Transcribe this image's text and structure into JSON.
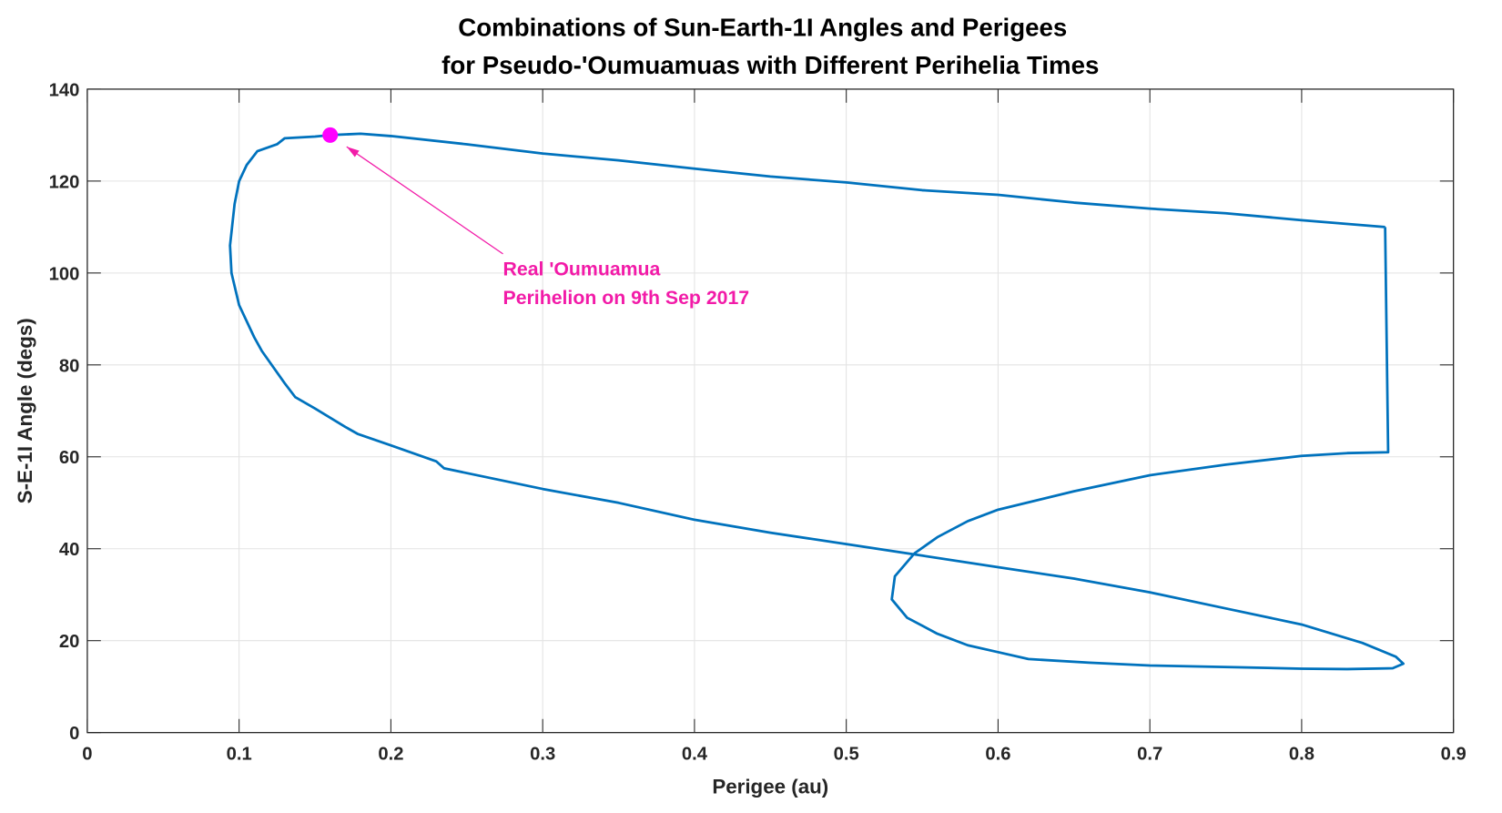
{
  "chart_data": {
    "type": "line",
    "title": [
      "Combinations of Sun-Earth-1I Angles and Perigees",
      "for Pseudo-'Oumuamuas with Different Perihelia Times"
    ],
    "xlabel": "Perigee (au)",
    "ylabel": "S-E-1I Angle (degs)",
    "xlim": [
      0,
      0.9
    ],
    "ylim": [
      0,
      140
    ],
    "xticks": [
      "0",
      "0.1",
      "0.2",
      "0.3",
      "0.4",
      "0.5",
      "0.6",
      "0.7",
      "0.8",
      "0.9"
    ],
    "yticks": [
      "0",
      "20",
      "40",
      "60",
      "80",
      "100",
      "120",
      "140"
    ],
    "grid": true,
    "series_color": "#0072bd",
    "x": [
      0.855,
      0.8,
      0.75,
      0.7,
      0.65,
      0.6,
      0.55,
      0.5,
      0.45,
      0.4,
      0.35,
      0.3,
      0.25,
      0.2,
      0.18,
      0.16,
      0.15,
      0.13,
      0.125,
      0.112,
      0.105,
      0.1,
      0.097,
      0.094,
      0.095,
      0.1,
      0.11,
      0.115,
      0.13,
      0.137,
      0.15,
      0.17,
      0.178,
      0.2,
      0.23,
      0.235,
      0.3,
      0.35,
      0.4,
      0.45,
      0.5,
      0.55,
      0.6,
      0.65,
      0.7,
      0.75,
      0.8,
      0.84,
      0.862,
      0.867,
      0.86,
      0.83,
      0.8,
      0.76,
      0.7,
      0.66,
      0.62,
      0.6,
      0.58,
      0.56,
      0.54,
      0.53,
      0.532,
      0.545,
      0.56,
      0.58,
      0.6,
      0.65,
      0.7,
      0.75,
      0.8,
      0.83,
      0.857,
      0.855
    ],
    "y": [
      110,
      111.5,
      113,
      114,
      115.3,
      117,
      118,
      119.7,
      121,
      122.7,
      124.5,
      126,
      128,
      129.8,
      130.3,
      130,
      129.7,
      129.3,
      128,
      126.5,
      123.5,
      120,
      115,
      106,
      100,
      93,
      86,
      83,
      76,
      73,
      70.5,
      66.5,
      65,
      62.5,
      59,
      57.5,
      53,
      50,
      46.3,
      43.5,
      41,
      38.5,
      36,
      33.5,
      30.5,
      27,
      23.5,
      19.5,
      16.5,
      15,
      14,
      13.8,
      13.9,
      14.2,
      14.6,
      15.2,
      16,
      17.5,
      19,
      21.5,
      25,
      29,
      34,
      39,
      42.5,
      46,
      48.5,
      52.5,
      56,
      58.3,
      60.2,
      60.8,
      61,
      110
    ],
    "highlight": {
      "x": 0.16,
      "y": 130,
      "color": "#ff00ff"
    },
    "annotation": {
      "lines": [
        "Real 'Oumuamua",
        "Perihelion on 9th Sep 2017"
      ],
      "color": "#f21ba8"
    }
  }
}
